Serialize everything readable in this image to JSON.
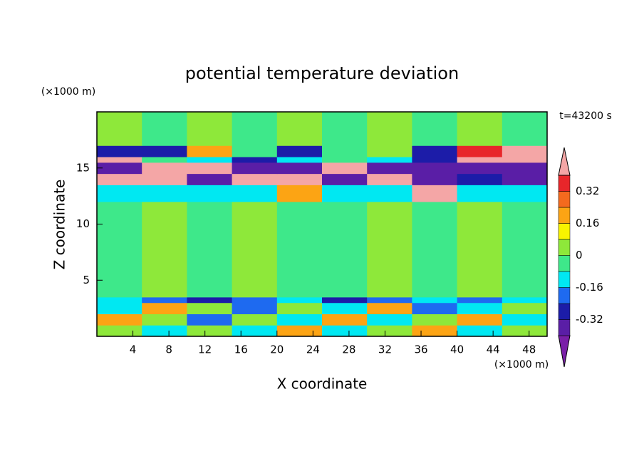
{
  "chart_data": {
    "type": "contour",
    "title": "potential temperature deviation",
    "x_label": "X coordinate",
    "y_label": "Z coordinate",
    "x_unit": "(×1000 m)",
    "y_unit": "(×1000 m)",
    "time_label": "t=43200 s",
    "xlim": [
      0,
      50
    ],
    "ylim": [
      0,
      20
    ],
    "xticks": [
      4,
      8,
      12,
      16,
      20,
      24,
      28,
      32,
      36,
      40,
      44,
      48
    ],
    "yticks": [
      5,
      10,
      15
    ],
    "x_edges": [
      0,
      5,
      10,
      15,
      20,
      25,
      30,
      35,
      40,
      45,
      50
    ],
    "z_edges": [
      0,
      1,
      2,
      3,
      3.5,
      12,
      13.5,
      14.5,
      15.5,
      16,
      17,
      20
    ],
    "z": [
      [
        0.04,
        -0.12,
        0.04,
        -0.12,
        0.2,
        -0.12,
        0.04,
        0.2,
        -0.12,
        0.04
      ],
      [
        0.2,
        0.04,
        -0.2,
        0.04,
        -0.12,
        0.2,
        -0.12,
        0.04,
        0.2,
        -0.12
      ],
      [
        -0.12,
        0.2,
        0.04,
        -0.2,
        0.04,
        -0.12,
        0.2,
        -0.2,
        -0.12,
        0.04
      ],
      [
        -0.12,
        -0.2,
        -0.28,
        -0.2,
        -0.12,
        -0.28,
        -0.2,
        -0.12,
        -0.2,
        -0.12
      ],
      [
        -0.04,
        0.04,
        -0.04,
        0.04,
        -0.04,
        -0.04,
        0.04,
        -0.04,
        0.04,
        -0.04
      ],
      [
        -0.12,
        -0.12,
        -0.12,
        -0.12,
        0.2,
        -0.12,
        -0.12,
        0.45,
        -0.12,
        -0.12
      ],
      [
        0.45,
        0.45,
        -0.36,
        0.45,
        0.45,
        -0.36,
        0.45,
        -0.36,
        -0.28,
        -0.36
      ],
      [
        -0.36,
        0.45,
        0.45,
        -0.36,
        -0.36,
        0.45,
        -0.36,
        -0.36,
        -0.36,
        -0.36
      ],
      [
        0.45,
        -0.04,
        -0.12,
        -0.28,
        -0.12,
        -0.04,
        -0.12,
        -0.28,
        0.45,
        0.45
      ],
      [
        -0.28,
        -0.28,
        0.2,
        -0.04,
        -0.28,
        -0.04,
        0.04,
        -0.28,
        0.36,
        0.45
      ],
      [
        0.04,
        -0.04,
        0.04,
        -0.04,
        0.04,
        -0.04,
        0.04,
        -0.04,
        0.04,
        -0.04
      ]
    ],
    "levels": [
      -0.4,
      -0.32,
      -0.24,
      -0.16,
      -0.08,
      0,
      0.08,
      0.16,
      0.24,
      0.32,
      0.4
    ],
    "colors": [
      "#7a1fa8",
      "#5a1ea6",
      "#1c1ca8",
      "#1e6af0",
      "#00e8f2",
      "#3ee88a",
      "#8ee83a",
      "#f8f400",
      "#fca414",
      "#f46a1e",
      "#e8262a",
      "#f4a6a6"
    ],
    "colorbar_ticks": [
      0.32,
      0.16,
      0,
      -0.16,
      -0.32
    ]
  }
}
